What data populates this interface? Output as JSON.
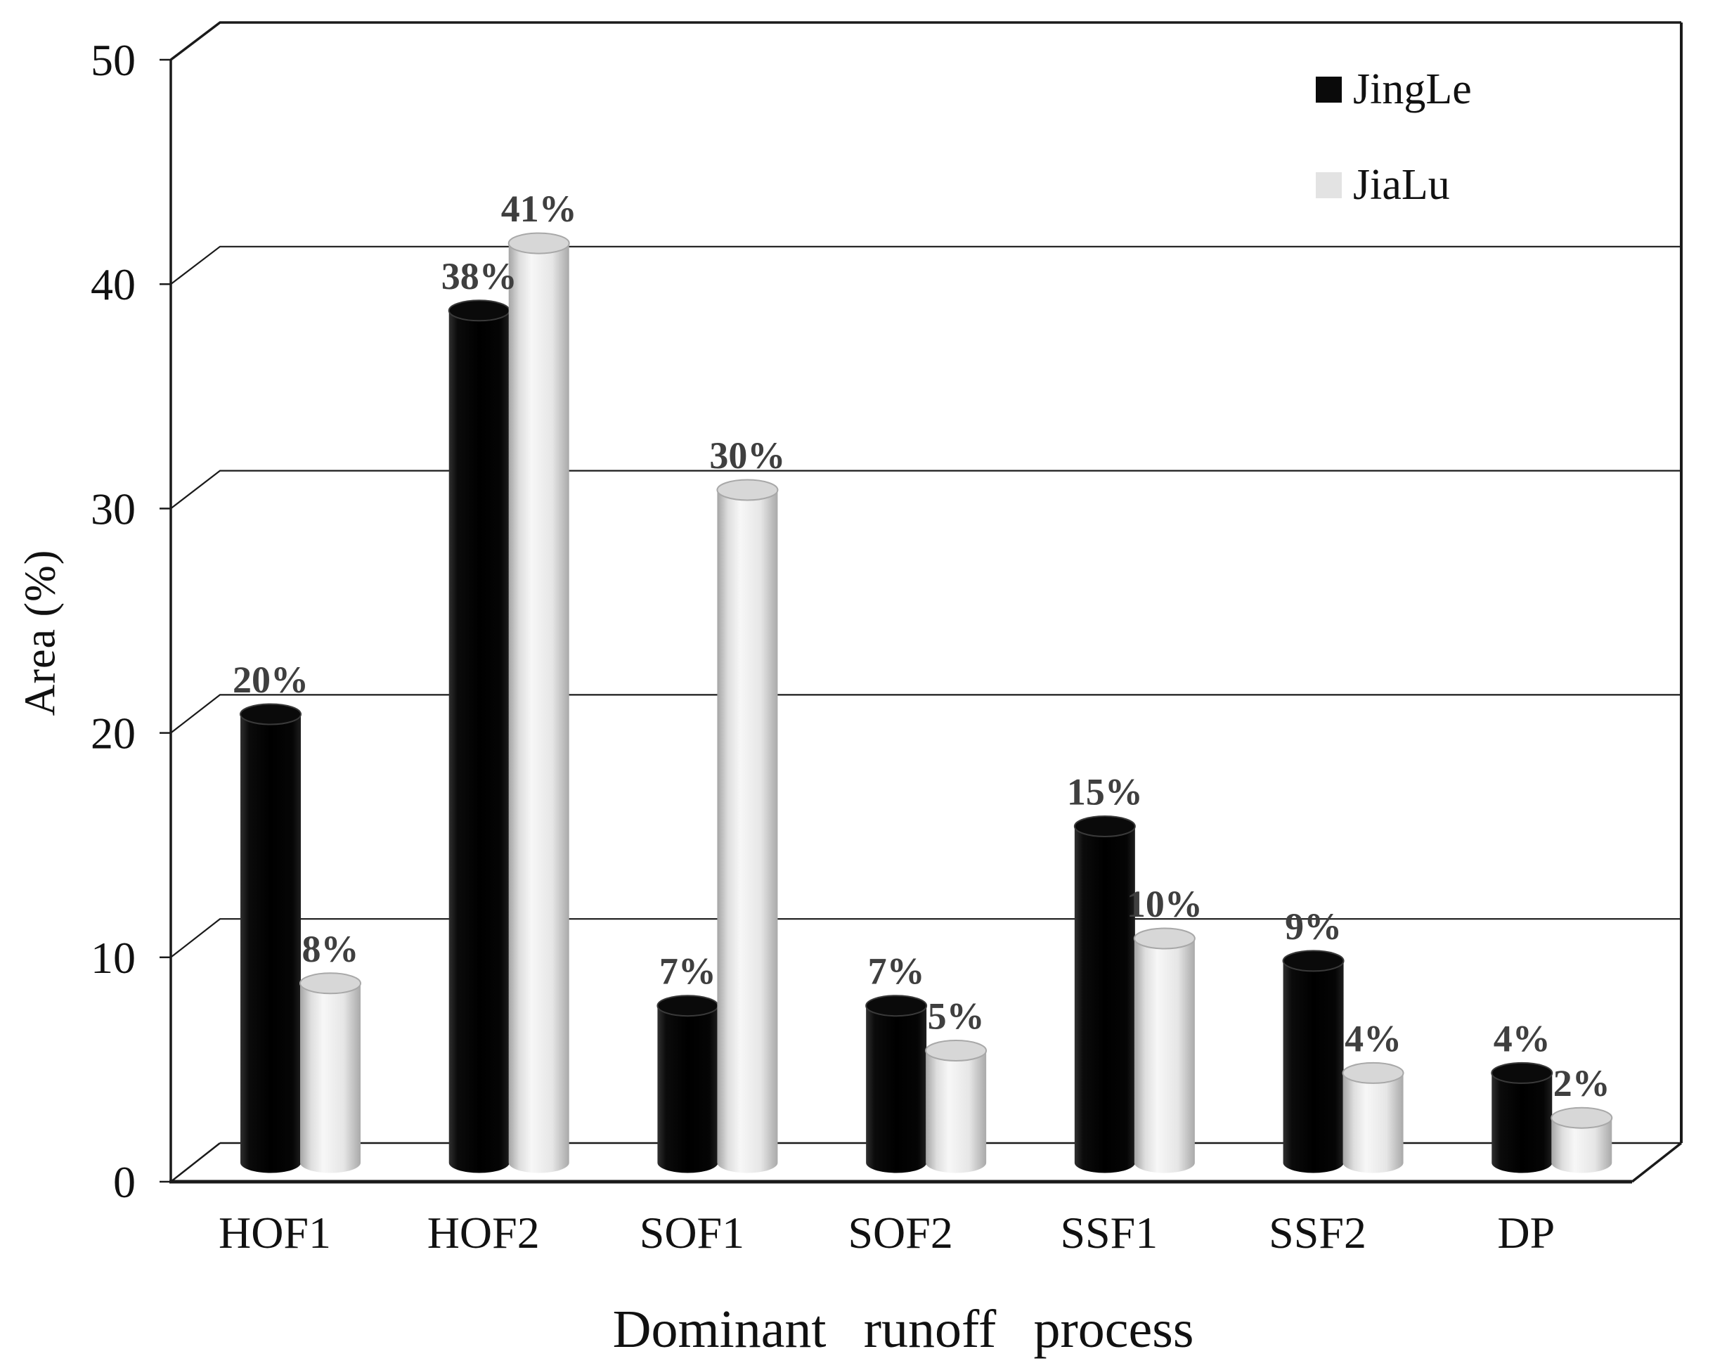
{
  "chart_data": {
    "type": "bar",
    "style": "3d-cylinder",
    "title": "",
    "xlabel": "Dominant runoff process",
    "ylabel": "Area (%)",
    "categories": [
      "HOF1",
      "HOF2",
      "SOF1",
      "SOF2",
      "SSF1",
      "SSF2",
      "DP"
    ],
    "series": [
      {
        "name": "JingLe",
        "color": "#0a0a0a",
        "values": [
          20,
          38,
          7,
          7,
          15,
          9,
          4
        ]
      },
      {
        "name": "JiaLu",
        "color": "#e3e3e3",
        "values": [
          8,
          41,
          30,
          5,
          10,
          4,
          2
        ]
      }
    ],
    "value_suffix": "%",
    "value_label_color": "#3f3f3f",
    "y_ticks": [
      0,
      10,
      20,
      30,
      40,
      50
    ],
    "ylim": [
      0,
      50
    ],
    "grid": true,
    "legend_position": "top-right",
    "axis_color": "#1a1a1a",
    "background": "#ffffff"
  }
}
